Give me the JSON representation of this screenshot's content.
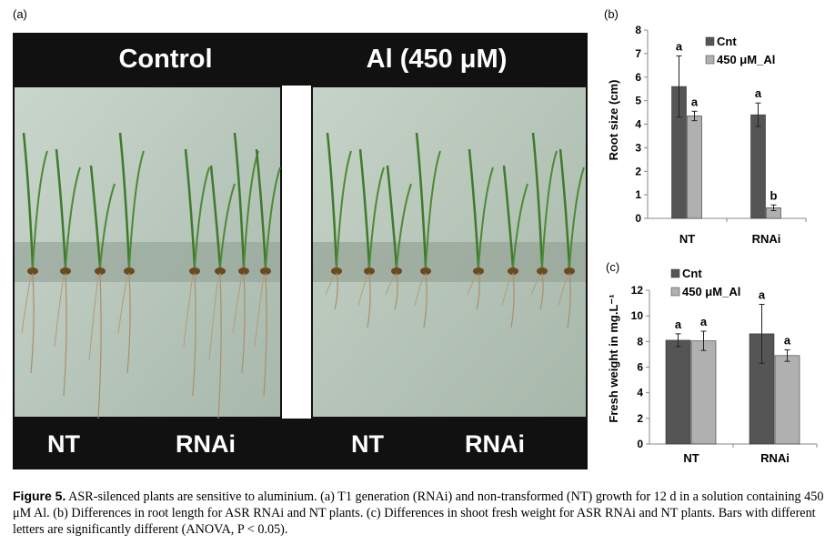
{
  "panel_a": {
    "tag": "(a)",
    "header_left": "Control",
    "header_right": "Al (450 μM)",
    "footer_labels": [
      "NT",
      "RNAi",
      "NT",
      "RNAi"
    ]
  },
  "panel_b": {
    "tag": "(b)"
  },
  "panel_c": {
    "tag": "(c)"
  },
  "chart_data": [
    {
      "type": "bar",
      "categories": [
        "NT",
        "RNAi"
      ],
      "series": [
        {
          "name": "Cnt",
          "values": [
            5.6,
            4.4
          ],
          "errors": [
            1.3,
            0.5
          ],
          "letters": [
            "a",
            "a"
          ],
          "color": "#555555"
        },
        {
          "name": "450 μM_Al",
          "values": [
            4.35,
            0.45
          ],
          "errors": [
            0.2,
            0.12
          ],
          "letters": [
            "a",
            "b"
          ],
          "color": "#b0b0b0"
        }
      ],
      "ylabel": "Root size (cm)",
      "ylim": [
        0,
        8
      ],
      "yticks": [
        0,
        1,
        2,
        3,
        4,
        5,
        6,
        7,
        8
      ],
      "legend": "top-right"
    },
    {
      "type": "bar",
      "categories": [
        "NT",
        "RNAi"
      ],
      "series": [
        {
          "name": "Cnt",
          "values": [
            8.1,
            8.6
          ],
          "errors": [
            0.5,
            2.3
          ],
          "letters": [
            "a",
            "a"
          ],
          "color": "#555555"
        },
        {
          "name": "450 μM_Al",
          "values": [
            8.05,
            6.9
          ],
          "errors": [
            0.75,
            0.45
          ],
          "letters": [
            "a",
            "a"
          ],
          "color": "#b0b0b0"
        }
      ],
      "ylabel": "Fresh weight in mg.L⁻¹",
      "ylim": [
        0,
        12
      ],
      "yticks": [
        0,
        2,
        4,
        6,
        8,
        10,
        12
      ],
      "legend": "top-left"
    }
  ],
  "caption": {
    "label": "Figure 5.",
    "text": "ASR-silenced plants are sensitive to aluminium. (a) T1 generation (RNAi) and non-transformed (NT) growth for 12 d in a solution containing 450 μM Al. (b) Differences in root length for ASR RNAi and NT plants. (c) Differences in shoot fresh weight for ASR RNAi and NT plants. Bars with different letters are significantly different (ANOVA, P < 0.05)."
  }
}
